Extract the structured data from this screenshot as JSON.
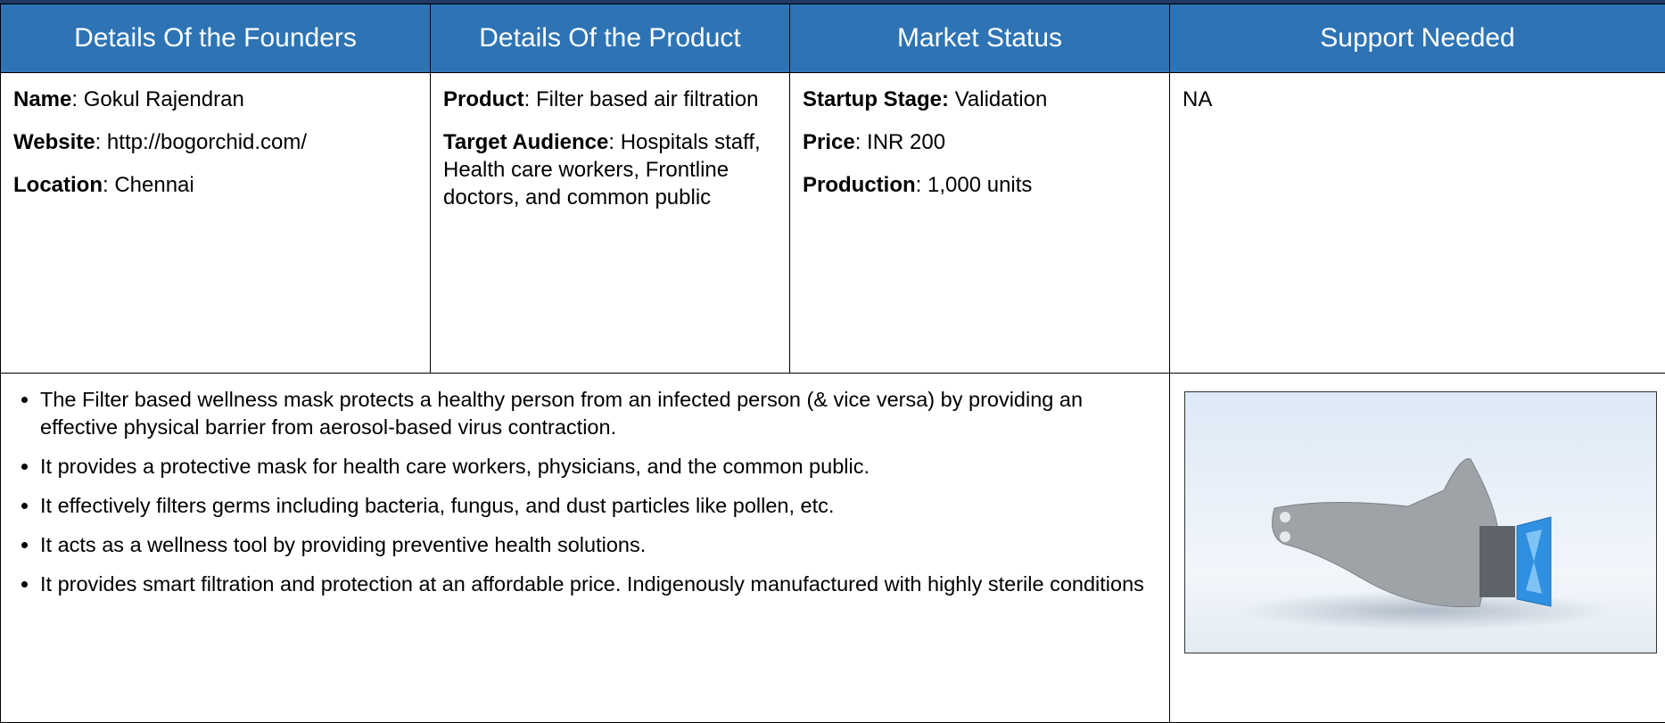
{
  "table": {
    "headers": [
      "Details Of the Founders",
      "Details Of the Product",
      "Market Status",
      "Support Needed"
    ],
    "founders": [
      {
        "label": "Name",
        "value": ":  Gokul Rajendran"
      },
      {
        "label": "Website",
        "value": ":  http://bogorchid.com/"
      },
      {
        "label": "Location",
        "value": ":  Chennai"
      }
    ],
    "product": [
      {
        "label": "Product",
        "value": ":  Filter based air filtration"
      },
      {
        "label": "Target Audience",
        "value": ":  Hospitals staff, Health care workers, Frontline doctors, and common public"
      }
    ],
    "market": [
      {
        "label": "Startup Stage:",
        "value": " Validation"
      },
      {
        "label": "Price",
        "value": ": INR 200"
      },
      {
        "label": "Production",
        "value": ": 1,000 units"
      }
    ],
    "support": "NA",
    "bullets": [
      "The Filter based wellness mask protects a healthy person from an infected person (& vice versa) by providing an effective physical barrier from aerosol-based virus contraction.",
      "It provides a protective mask for health care workers, physicians, and the common public.",
      "It effectively filters germs including bacteria, fungus, and dust particles like pollen, etc.",
      "It acts as a wellness tool by providing preventive health solutions.",
      "It provides smart filtration and protection at an affordable price. Indigenously manufactured with highly sterile conditions"
    ]
  }
}
